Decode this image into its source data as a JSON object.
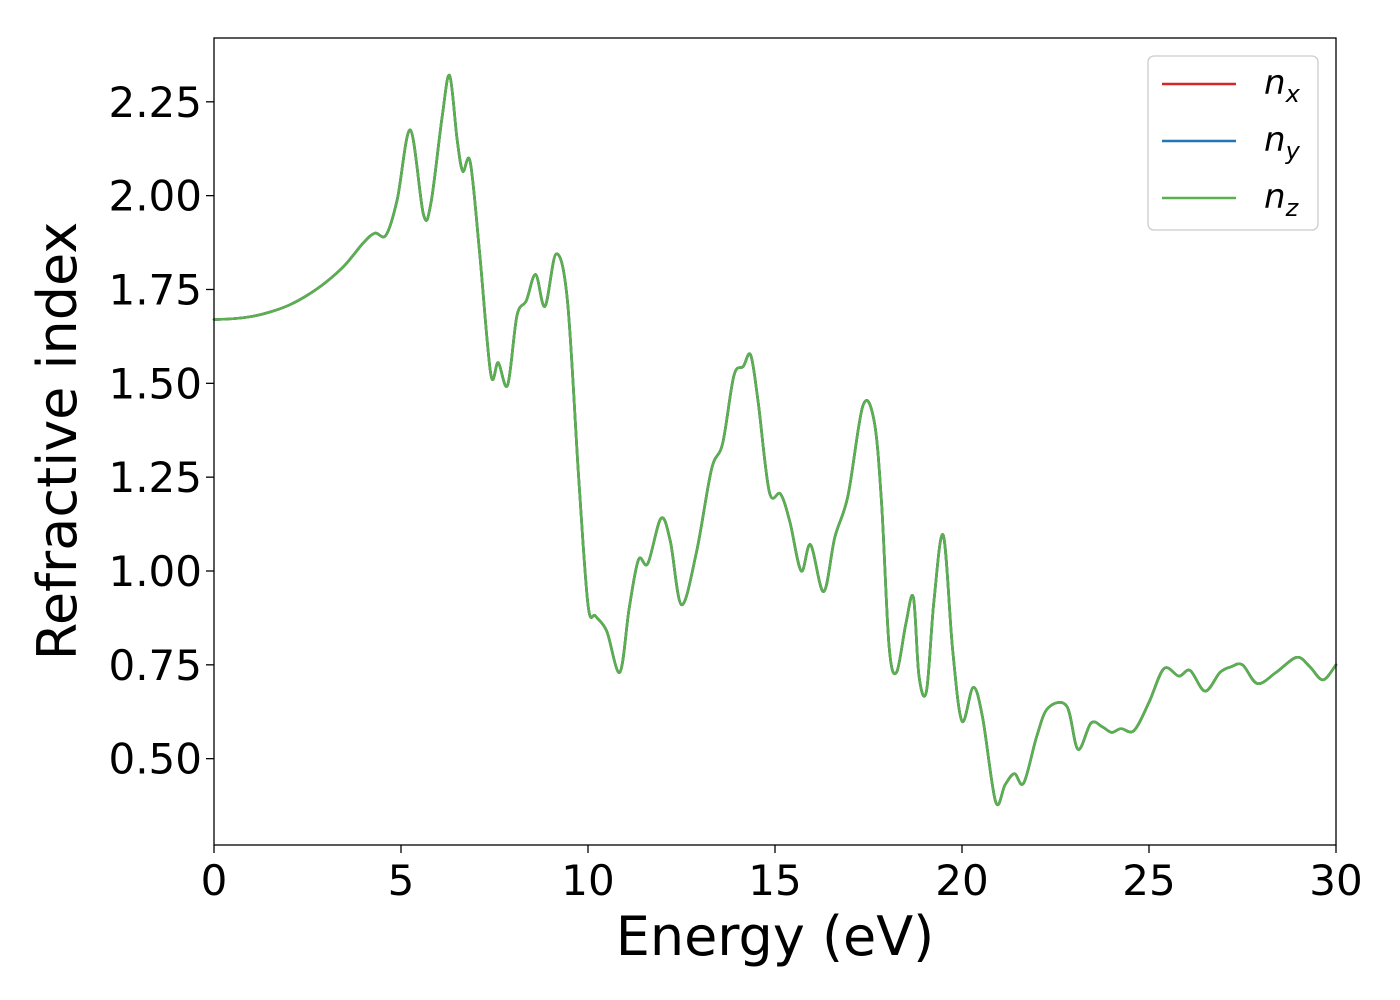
{
  "chart_data": {
    "type": "line",
    "title": "",
    "xlabel": "Energy (eV)",
    "ylabel": "Refractive index",
    "xlim": [
      0,
      30
    ],
    "ylim": [
      0.27,
      2.42
    ],
    "xticks": [
      0,
      5,
      10,
      15,
      20,
      25,
      30
    ],
    "xtick_labels": [
      "0",
      "5",
      "10",
      "15",
      "20",
      "25",
      "30"
    ],
    "yticks": [
      0.5,
      0.75,
      1.0,
      1.25,
      1.5,
      1.75,
      2.0,
      2.25
    ],
    "ytick_labels": [
      "0.50",
      "0.75",
      "1.00",
      "1.25",
      "1.50",
      "1.75",
      "2.00",
      "2.25"
    ],
    "grid": false,
    "legend_position": "top-right",
    "x": [
      0,
      0.5,
      1,
      1.5,
      2,
      2.5,
      3,
      3.5,
      4,
      4.3,
      4.6,
      4.9,
      5.25,
      5.6,
      5.8,
      6.1,
      6.3,
      6.5,
      6.65,
      6.85,
      7.1,
      7.4,
      7.6,
      7.85,
      8.1,
      8.35,
      8.6,
      8.85,
      9.15,
      9.45,
      9.75,
      10.0,
      10.2,
      10.5,
      10.85,
      11.1,
      11.35,
      11.6,
      11.95,
      12.2,
      12.5,
      12.9,
      13.3,
      13.6,
      13.9,
      14.15,
      14.35,
      14.55,
      14.85,
      15.15,
      15.4,
      15.7,
      15.95,
      16.3,
      16.6,
      16.95,
      17.35,
      17.65,
      17.85,
      18.05,
      18.25,
      18.5,
      18.7,
      18.85,
      19.05,
      19.25,
      19.5,
      19.75,
      20.0,
      20.3,
      20.55,
      20.9,
      21.15,
      21.4,
      21.65,
      22.0,
      22.3,
      22.8,
      23.1,
      23.45,
      23.75,
      24.0,
      24.25,
      24.6,
      25.0,
      25.4,
      25.8,
      26.1,
      26.5,
      26.9,
      27.2,
      27.5,
      27.9,
      28.4,
      28.95,
      29.3,
      29.65,
      30.0
    ],
    "series": [
      {
        "name": "n_x",
        "label_base": "n",
        "label_sub": "x",
        "color": "#d62728",
        "values": [
          1.67,
          1.672,
          1.678,
          1.69,
          1.708,
          1.735,
          1.77,
          1.815,
          1.875,
          1.9,
          1.895,
          1.99,
          2.175,
          1.95,
          1.98,
          2.21,
          2.32,
          2.15,
          2.065,
          2.09,
          1.85,
          1.525,
          1.555,
          1.495,
          1.68,
          1.72,
          1.79,
          1.705,
          1.845,
          1.72,
          1.25,
          0.91,
          0.88,
          0.84,
          0.73,
          0.9,
          1.03,
          1.02,
          1.14,
          1.08,
          0.91,
          1.05,
          1.27,
          1.34,
          1.52,
          1.545,
          1.575,
          1.45,
          1.21,
          1.205,
          1.13,
          1.0,
          1.07,
          0.945,
          1.09,
          1.2,
          1.44,
          1.4,
          1.18,
          0.8,
          0.73,
          0.86,
          0.93,
          0.72,
          0.68,
          0.92,
          1.095,
          0.79,
          0.6,
          0.69,
          0.61,
          0.385,
          0.43,
          0.46,
          0.435,
          0.56,
          0.635,
          0.64,
          0.525,
          0.595,
          0.585,
          0.57,
          0.58,
          0.575,
          0.65,
          0.74,
          0.72,
          0.735,
          0.68,
          0.73,
          0.745,
          0.75,
          0.7,
          0.73,
          0.77,
          0.745,
          0.71,
          0.75
        ]
      },
      {
        "name": "n_y",
        "label_base": "n",
        "label_sub": "y",
        "color": "#1f77b4",
        "values": [
          1.67,
          1.672,
          1.678,
          1.69,
          1.708,
          1.735,
          1.77,
          1.815,
          1.875,
          1.9,
          1.895,
          1.99,
          2.175,
          1.95,
          1.98,
          2.21,
          2.32,
          2.15,
          2.065,
          2.09,
          1.85,
          1.525,
          1.555,
          1.495,
          1.68,
          1.72,
          1.79,
          1.705,
          1.845,
          1.72,
          1.25,
          0.91,
          0.88,
          0.84,
          0.73,
          0.9,
          1.03,
          1.02,
          1.14,
          1.08,
          0.91,
          1.05,
          1.27,
          1.34,
          1.52,
          1.545,
          1.575,
          1.45,
          1.21,
          1.205,
          1.13,
          1.0,
          1.07,
          0.945,
          1.09,
          1.2,
          1.44,
          1.4,
          1.18,
          0.8,
          0.73,
          0.86,
          0.93,
          0.72,
          0.68,
          0.92,
          1.095,
          0.79,
          0.6,
          0.69,
          0.61,
          0.385,
          0.43,
          0.46,
          0.435,
          0.56,
          0.635,
          0.64,
          0.525,
          0.595,
          0.585,
          0.57,
          0.58,
          0.575,
          0.65,
          0.74,
          0.72,
          0.735,
          0.68,
          0.73,
          0.745,
          0.75,
          0.7,
          0.73,
          0.77,
          0.745,
          0.71,
          0.75
        ]
      },
      {
        "name": "n_z",
        "label_base": "n",
        "label_sub": "z",
        "color": "#5aaf4f",
        "values": [
          1.67,
          1.672,
          1.678,
          1.69,
          1.708,
          1.735,
          1.77,
          1.815,
          1.875,
          1.9,
          1.895,
          1.99,
          2.175,
          1.95,
          1.98,
          2.21,
          2.32,
          2.15,
          2.065,
          2.09,
          1.85,
          1.525,
          1.555,
          1.495,
          1.68,
          1.72,
          1.79,
          1.705,
          1.845,
          1.72,
          1.25,
          0.91,
          0.88,
          0.84,
          0.73,
          0.9,
          1.03,
          1.02,
          1.14,
          1.08,
          0.91,
          1.05,
          1.27,
          1.34,
          1.52,
          1.545,
          1.575,
          1.45,
          1.21,
          1.205,
          1.13,
          1.0,
          1.07,
          0.945,
          1.09,
          1.2,
          1.44,
          1.4,
          1.18,
          0.8,
          0.73,
          0.86,
          0.93,
          0.72,
          0.68,
          0.92,
          1.095,
          0.79,
          0.6,
          0.69,
          0.61,
          0.385,
          0.43,
          0.46,
          0.435,
          0.56,
          0.635,
          0.64,
          0.525,
          0.595,
          0.585,
          0.57,
          0.58,
          0.575,
          0.65,
          0.74,
          0.72,
          0.735,
          0.68,
          0.73,
          0.745,
          0.75,
          0.7,
          0.73,
          0.77,
          0.745,
          0.71,
          0.75
        ]
      }
    ]
  }
}
